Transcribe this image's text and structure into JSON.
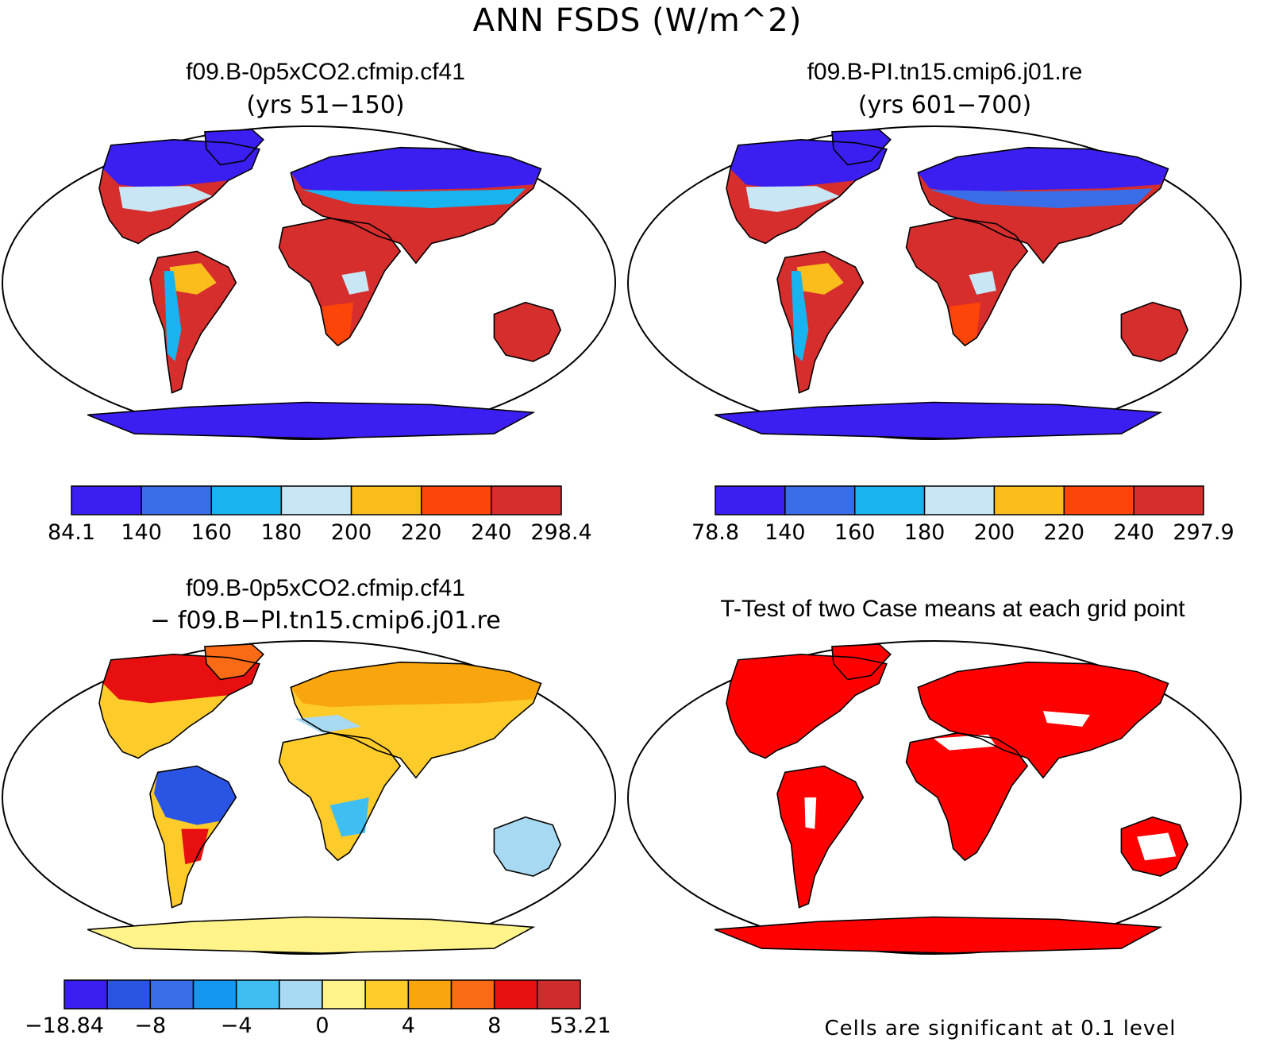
{
  "title": "ANN FSDS (W/m^2)",
  "panels": [
    {
      "id": "case1",
      "title": "f09.B-0p5xCO2.cfmip.cf41",
      "subtitle": "(yrs 51−150)",
      "colorbar": {
        "labels": [
          "84.1",
          "140",
          "160",
          "180",
          "200",
          "220",
          "240",
          "298.4"
        ],
        "colors": [
          "#3a1ff0",
          "#3a6ee8",
          "#17b4f0",
          "#c9e6f5",
          "#fbbd1c",
          "#fd4409",
          "#d62d2d"
        ]
      }
    },
    {
      "id": "case2",
      "title": "f09.B-PI.tn15.cmip6.j01.re",
      "subtitle": "(yrs 601−700)",
      "colorbar": {
        "labels": [
          "78.8",
          "140",
          "160",
          "180",
          "200",
          "220",
          "240",
          "297.9"
        ],
        "colors": [
          "#3a1ff0",
          "#3a6ee8",
          "#17b4f0",
          "#c9e6f5",
          "#fbbd1c",
          "#fd4409",
          "#d62d2d"
        ]
      }
    },
    {
      "id": "diff",
      "title": "f09.B-0p5xCO2.cfmip.cf41",
      "subtitle": "− f09.B−PI.tn15.cmip6.j01.re",
      "colorbar": {
        "labels": [
          "−18.84",
          "−8",
          "−4",
          "0",
          "4",
          "8",
          "53.21"
        ],
        "colors": [
          "#3a1ff0",
          "#2a55e4",
          "#3a6ee8",
          "#1496f3",
          "#3fbef2",
          "#a8d9f2",
          "#fff38a",
          "#fdcb2a",
          "#f9a50d",
          "#fb6a14",
          "#e70f0f",
          "#cf2d2d"
        ]
      }
    },
    {
      "id": "ttest",
      "title": "T-Test of two Case means at each grid point",
      "note": "Cells are significant at 0.1 level",
      "fill": "#ff0000"
    }
  ]
}
